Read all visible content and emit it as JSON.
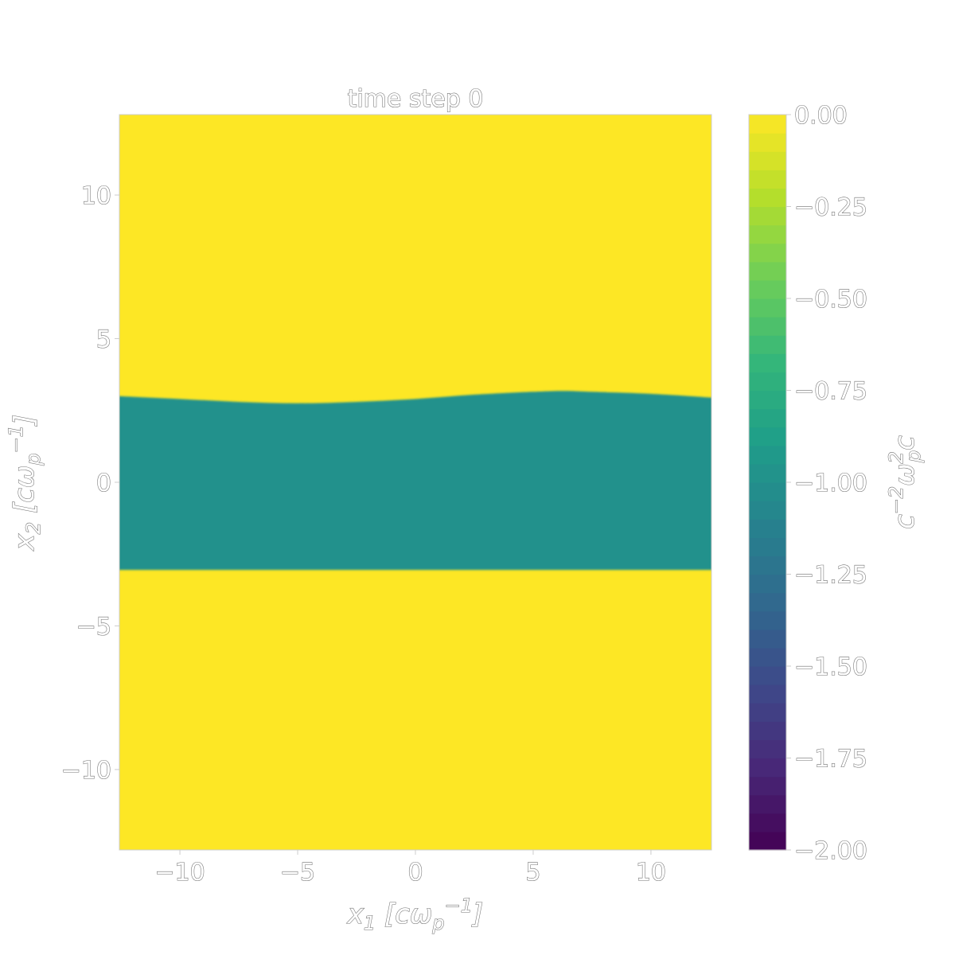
{
  "chart_data": {
    "type": "heatmap",
    "title": "time step 0",
    "xlabel": {
      "main": "x",
      "sub": "1",
      "open": " [cω",
      "sub2": "p",
      "sup": "−1",
      "close": "]"
    },
    "ylabel": {
      "main": "x",
      "sub": "2",
      "open": " [cω",
      "sub2": "p",
      "sup": "−1",
      "close": "]"
    },
    "colorbar_label": {
      "main": "c",
      "sup": "−2",
      "omega": "ω",
      "omega_sub": "p",
      "omega_sup": "2",
      "tail": "c"
    },
    "xlim": [
      -12.57,
      12.57
    ],
    "ylim": [
      -12.8,
      12.8
    ],
    "clim": [
      -2.0,
      0.0
    ],
    "x_ticks": [
      {
        "value": -10,
        "label": "−10"
      },
      {
        "value": -5,
        "label": "−5"
      },
      {
        "value": 0,
        "label": "0"
      },
      {
        "value": 5,
        "label": "5"
      },
      {
        "value": 10,
        "label": "10"
      }
    ],
    "y_ticks": [
      {
        "value": 10,
        "label": "10"
      },
      {
        "value": 5,
        "label": "5"
      },
      {
        "value": 0,
        "label": "0"
      },
      {
        "value": -5,
        "label": "−5"
      },
      {
        "value": -10,
        "label": "−10"
      }
    ],
    "colorbar_ticks": [
      {
        "value": 0.0,
        "label": "0.00"
      },
      {
        "value": -0.25,
        "label": "−0.25"
      },
      {
        "value": -0.5,
        "label": "−0.50"
      },
      {
        "value": -0.75,
        "label": "−0.75"
      },
      {
        "value": -1.0,
        "label": "−1.00"
      },
      {
        "value": -1.25,
        "label": "−1.25"
      },
      {
        "value": -1.5,
        "label": "−1.50"
      },
      {
        "value": -1.75,
        "label": "−1.75"
      },
      {
        "value": -2.0,
        "label": "−2.00"
      }
    ],
    "background_value": 0.0,
    "band_value": -1.0,
    "band_lower_boundary": [
      {
        "x": -12.57,
        "y": -3.05
      },
      {
        "x": 12.57,
        "y": -3.05
      }
    ],
    "band_upper_boundary": [
      {
        "x": -12.57,
        "y": 3.0
      },
      {
        "x": -10,
        "y": 2.9
      },
      {
        "x": -7.5,
        "y": 2.8
      },
      {
        "x": -5,
        "y": 2.75
      },
      {
        "x": -2.5,
        "y": 2.8
      },
      {
        "x": 0,
        "y": 2.9
      },
      {
        "x": 2.5,
        "y": 3.05
      },
      {
        "x": 5,
        "y": 3.15
      },
      {
        "x": 6.3,
        "y": 3.18
      },
      {
        "x": 7.5,
        "y": 3.15
      },
      {
        "x": 10,
        "y": 3.08
      },
      {
        "x": 12.57,
        "y": 2.95
      }
    ],
    "colormap": "viridis",
    "colorbar_levels": 40,
    "colors": {
      "background": "#fde725",
      "band": "#21918c"
    }
  }
}
